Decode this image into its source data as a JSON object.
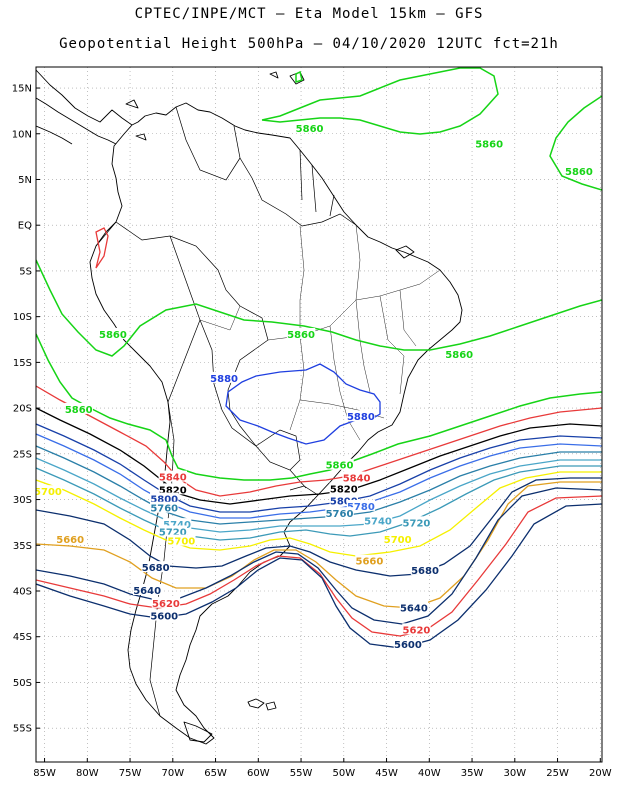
{
  "title_line1": "CPTEC/INPE/MCT –  Eta Model 15km – GFS",
  "title_line2": "Geopotential Height 500hPa – 04/10/2020 12UTC fct=21h",
  "lat_labels": [
    "15N",
    "10N",
    "5N",
    "EQ",
    "5S",
    "10S",
    "15S",
    "20S",
    "25S",
    "30S",
    "35S",
    "40S",
    "45S",
    "50S",
    "55S"
  ],
  "lat_values": [
    15,
    10,
    5,
    0,
    -5,
    -10,
    -15,
    -20,
    -25,
    -30,
    -35,
    -40,
    -45,
    -50,
    -55
  ],
  "lon_labels": [
    "85W",
    "80W",
    "75W",
    "70W",
    "65W",
    "60W",
    "55W",
    "50W",
    "45W",
    "40W",
    "35W",
    "30W",
    "25W",
    "20W"
  ],
  "lon_values": [
    -85,
    -80,
    -75,
    -70,
    -65,
    -60,
    -55,
    -50,
    -45,
    -40,
    -35,
    -30,
    -25,
    -20
  ],
  "contour_colors": {
    "5880": "#1f3fe0",
    "5860": "#16d416",
    "5840": "#e83a3a",
    "5820": "#000000",
    "5800": "#1840a8",
    "5780": "#3a6ee8",
    "5760": "#2a7fa8",
    "5740": "#4aa6c8",
    "5720": "#3c9ab8",
    "5700": "#f5f000",
    "5680": "#0c2f6e",
    "5660": "#e0a020",
    "5640": "#0c2f6e",
    "5620": "#e83a3a",
    "5600": "#0c2f6e"
  },
  "contour_labels": [
    {
      "text": "5860",
      "lat": 10.5,
      "lon": -54,
      "color": "5860"
    },
    {
      "text": "5860",
      "lat": 8.8,
      "lon": -33,
      "color": "5860"
    },
    {
      "text": "5860",
      "lat": 5.8,
      "lon": -22.5,
      "color": "5860"
    },
    {
      "text": "5860",
      "lat": -12,
      "lon": -77,
      "color": "5860"
    },
    {
      "text": "5860",
      "lat": -12,
      "lon": -55,
      "color": "5860"
    },
    {
      "text": "5860",
      "lat": -14.2,
      "lon": -36.5,
      "color": "5860"
    },
    {
      "text": "5860",
      "lat": -20.2,
      "lon": -81,
      "color": "5860"
    },
    {
      "text": "5860",
      "lat": -26.3,
      "lon": -50.5,
      "color": "5860"
    },
    {
      "text": "5880",
      "lat": -16.8,
      "lon": -64,
      "color": "5880"
    },
    {
      "text": "5880",
      "lat": -21,
      "lon": -48,
      "color": "5880"
    },
    {
      "text": "5840",
      "lat": -27.6,
      "lon": -70,
      "color": "5840"
    },
    {
      "text": "5840",
      "lat": -27.7,
      "lon": -48.5,
      "color": "5840"
    },
    {
      "text": "5820",
      "lat": -29,
      "lon": -70,
      "color": "5820"
    },
    {
      "text": "5820",
      "lat": -28.9,
      "lon": -50,
      "color": "5820"
    },
    {
      "text": "5800",
      "lat": -30,
      "lon": -71,
      "color": "5800"
    },
    {
      "text": "5800",
      "lat": -30.2,
      "lon": -50,
      "color": "5800"
    },
    {
      "text": "5780",
      "lat": -30.8,
      "lon": -48,
      "color": "5780"
    },
    {
      "text": "5760",
      "lat": -31,
      "lon": -71,
      "color": "5760"
    },
    {
      "text": "5760",
      "lat": -31.6,
      "lon": -50.5,
      "color": "5760"
    },
    {
      "text": "5740",
      "lat": -32.8,
      "lon": -69.5,
      "color": "5740"
    },
    {
      "text": "5740",
      "lat": -32.4,
      "lon": -46,
      "color": "5740"
    },
    {
      "text": "5720",
      "lat": -33.6,
      "lon": -70,
      "color": "5720"
    },
    {
      "text": "5720",
      "lat": -32.6,
      "lon": -41.5,
      "color": "5720"
    },
    {
      "text": "5700",
      "lat": -29.2,
      "lon": -84.6,
      "color": "5700"
    },
    {
      "text": "5700",
      "lat": -34.6,
      "lon": -69,
      "color": "5700"
    },
    {
      "text": "5700",
      "lat": -34.4,
      "lon": -43.7,
      "color": "5700"
    },
    {
      "text": "5680",
      "lat": -37.5,
      "lon": -72,
      "color": "5680"
    },
    {
      "text": "5680",
      "lat": -37.8,
      "lon": -40.5,
      "color": "5680"
    },
    {
      "text": "5660",
      "lat": -34.4,
      "lon": -82,
      "color": "5660"
    },
    {
      "text": "5660",
      "lat": -36.8,
      "lon": -47,
      "color": "5660"
    },
    {
      "text": "5640",
      "lat": -40,
      "lon": -73,
      "color": "5640"
    },
    {
      "text": "5640",
      "lat": -41.9,
      "lon": -41.8,
      "color": "5640"
    },
    {
      "text": "5620",
      "lat": -41.4,
      "lon": -70.8,
      "color": "5620"
    },
    {
      "text": "5620",
      "lat": -44.3,
      "lon": -41.5,
      "color": "5620"
    },
    {
      "text": "5600",
      "lat": -42.8,
      "lon": -71,
      "color": "5600"
    },
    {
      "text": "5600",
      "lat": -45.9,
      "lon": -42.5,
      "color": "5600"
    }
  ]
}
